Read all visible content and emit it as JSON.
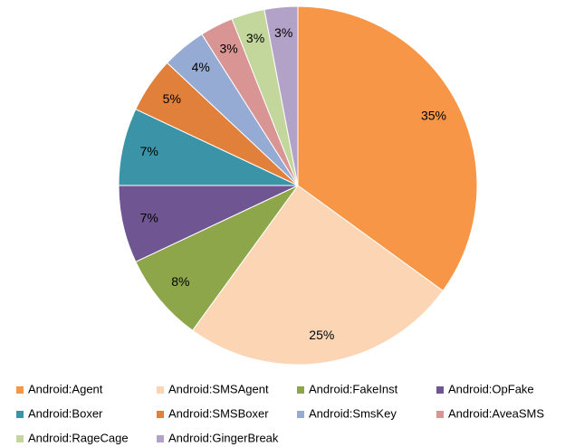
{
  "chart_data": {
    "type": "pie",
    "categories": [
      "Android:Agent",
      "Android:SMSAgent",
      "Android:FakeInst",
      "Android:OpFake",
      "Android:Boxer",
      "Android:SMSBoxer",
      "Android:SmsKey",
      "Android:AveaSMS",
      "Android:RageCage",
      "Android:GingerBreak"
    ],
    "values": [
      35,
      25,
      8,
      7,
      7,
      5,
      4,
      3,
      3,
      3
    ],
    "value_labels": [
      "35%",
      "25%",
      "8%",
      "7%",
      "7%",
      "5%",
      "4%",
      "3%",
      "3%",
      "3%"
    ],
    "colors": [
      "#f79646",
      "#fcd5b5",
      "#8ea64a",
      "#6f5693",
      "#3b93a8",
      "#e0803a",
      "#95abd4",
      "#d99594",
      "#c3d69b",
      "#b3a2c7"
    ],
    "legend": "bottom"
  }
}
